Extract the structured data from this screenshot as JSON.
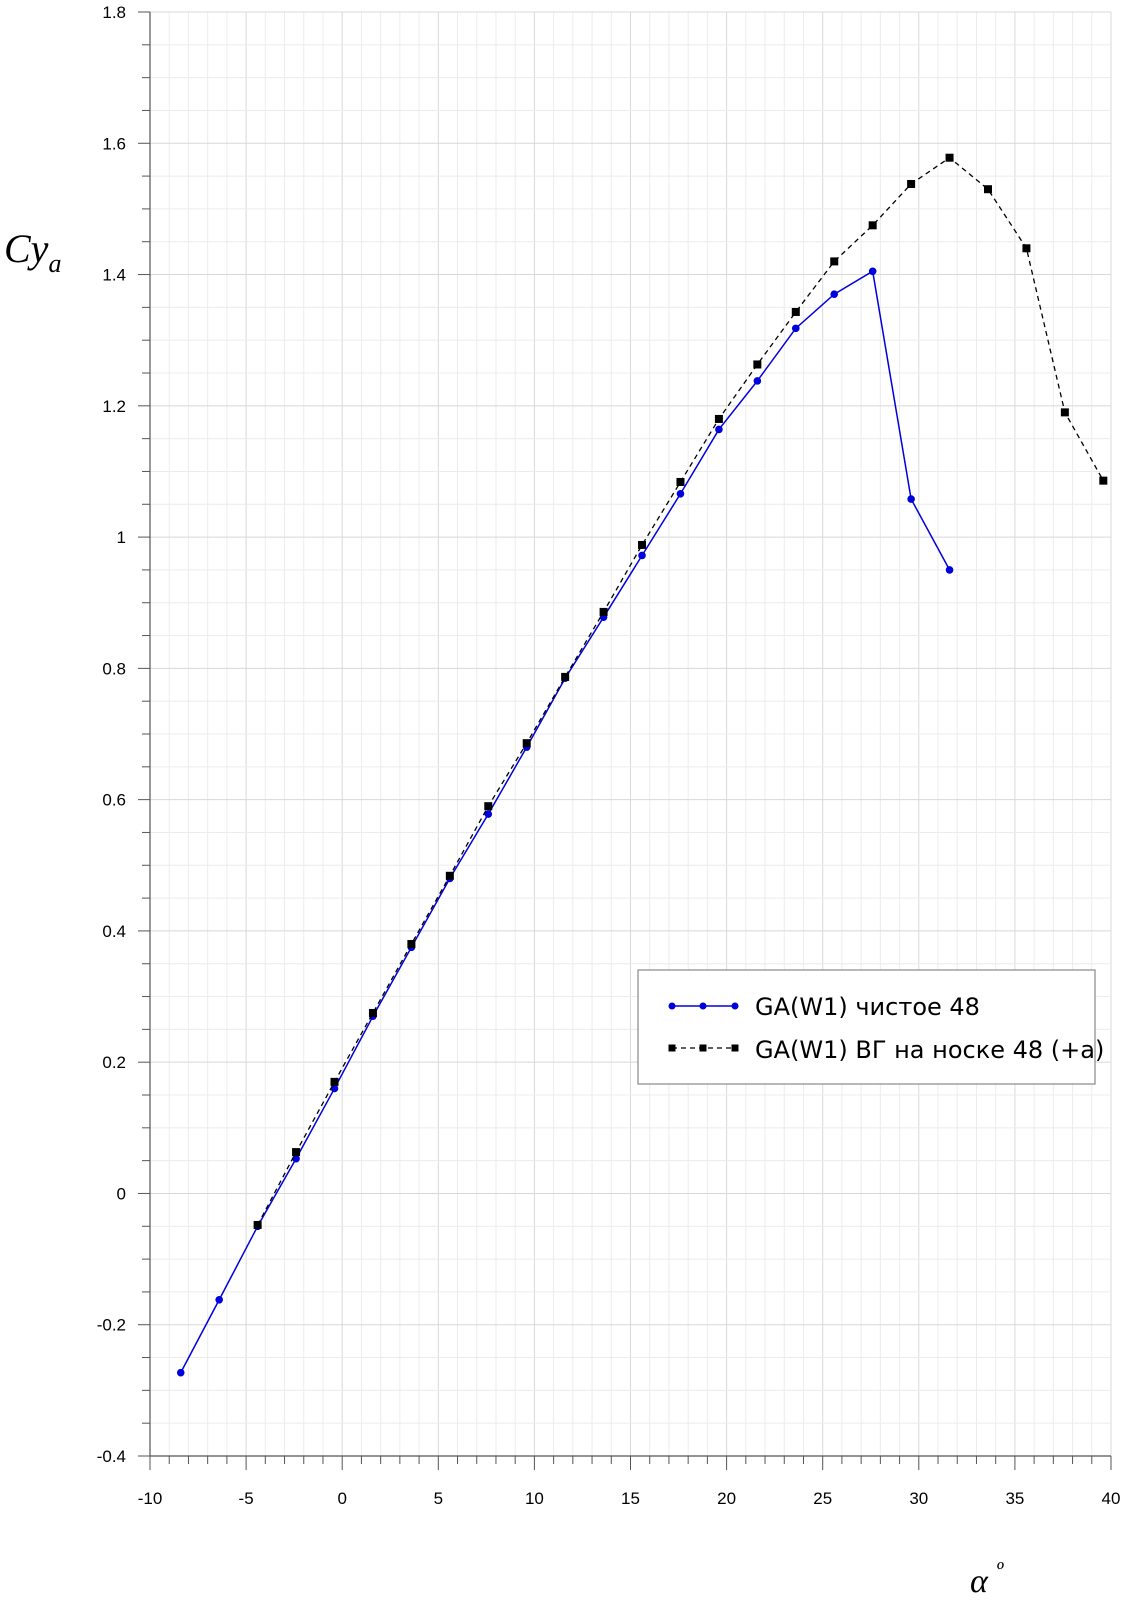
{
  "chart_data": {
    "type": "line",
    "title": "",
    "xlabel": "α º",
    "xlabel_main": "α",
    "xlabel_sup": "º",
    "ylabel_main": "Cy",
    "ylabel_sub": "a",
    "xlim": [
      -10,
      40
    ],
    "ylim": [
      -0.4,
      1.8
    ],
    "xticks": [
      -10,
      -5,
      0,
      5,
      10,
      15,
      20,
      25,
      30,
      35,
      40
    ],
    "yticks": [
      -0.4,
      -0.2,
      0,
      0.2,
      0.4,
      0.6,
      0.8,
      1,
      1.2,
      1.4,
      1.6,
      1.8
    ],
    "grid": true,
    "legend_position": "center-right",
    "series": [
      {
        "name": "GA(W1) чистое 48",
        "color": "#0000dd",
        "style": "solid",
        "marker": "circle",
        "x": [
          -8.4,
          -6.4,
          -4.4,
          -2.4,
          -0.4,
          1.6,
          3.6,
          5.6,
          7.6,
          9.6,
          11.6,
          13.6,
          15.6,
          17.6,
          19.6,
          21.6,
          23.6,
          25.6,
          27.6,
          29.6,
          31.6
        ],
        "y": [
          -0.273,
          -0.162,
          -0.05,
          0.053,
          0.16,
          0.27,
          0.375,
          0.48,
          0.578,
          0.68,
          0.785,
          0.878,
          0.972,
          1.066,
          1.164,
          1.238,
          1.318,
          1.37,
          1.405,
          1.058,
          0.95
        ]
      },
      {
        "name": "GA(W1) ВГ на носке 48 (+a)",
        "color": "#000000",
        "style": "dashed",
        "marker": "square",
        "x": [
          -4.4,
          -2.4,
          -0.4,
          1.6,
          3.6,
          5.6,
          7.6,
          9.6,
          11.6,
          13.6,
          15.6,
          17.6,
          19.6,
          21.6,
          23.6,
          25.6,
          27.6,
          29.6,
          31.6,
          33.6,
          35.6,
          37.6,
          39.6
        ],
        "y": [
          -0.048,
          0.063,
          0.17,
          0.275,
          0.38,
          0.484,
          0.59,
          0.686,
          0.787,
          0.886,
          0.988,
          1.084,
          1.18,
          1.263,
          1.343,
          1.42,
          1.475,
          1.538,
          1.578,
          1.53,
          1.44,
          1.19,
          1.086
        ]
      }
    ]
  }
}
